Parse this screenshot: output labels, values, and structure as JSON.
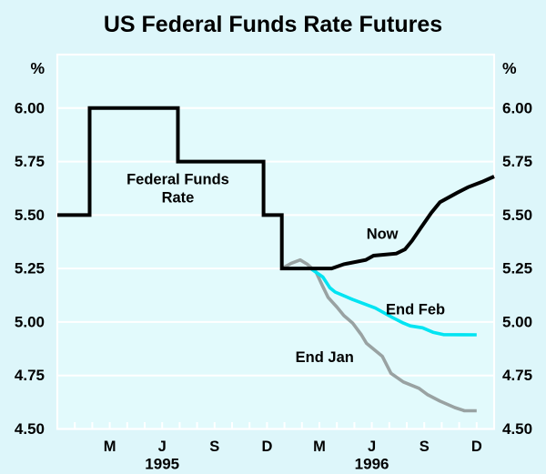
{
  "title": "US Federal Funds Rate Futures",
  "colors": {
    "background": "#DDF6FA",
    "plot_background": "#E2FAFC",
    "grid": "#FFFFFF",
    "line_black": "#000000",
    "line_cyan": "#00E4F2",
    "line_gray": "#99A2A2",
    "text": "#000000"
  },
  "chart_data": {
    "type": "line",
    "title": "US Federal Funds Rate Futures",
    "unit_left": "%",
    "unit_right": "%",
    "ylim": [
      4.5,
      6.25
    ],
    "grid": "on",
    "grid_values": [
      4.75,
      5.0,
      5.25,
      5.5,
      5.75,
      6.0
    ],
    "y_tick_labels": [
      {
        "value": 6.0,
        "label": "6.00"
      },
      {
        "value": 5.75,
        "label": "5.75"
      },
      {
        "value": 5.5,
        "label": "5.50"
      },
      {
        "value": 5.25,
        "label": "5.25"
      },
      {
        "value": 5.0,
        "label": "5.00"
      },
      {
        "value": 4.75,
        "label": "4.75"
      },
      {
        "value": 4.5,
        "label": "4.50"
      }
    ],
    "x_axis": {
      "t_unit": "months_from_Dec_1994",
      "t_range": [
        0,
        25
      ],
      "minor_tick_every_months": 1,
      "month_labels": [
        {
          "label": "M",
          "t": 3
        },
        {
          "label": "J",
          "t": 6
        },
        {
          "label": "S",
          "t": 9
        },
        {
          "label": "D",
          "t": 12
        },
        {
          "label": "M",
          "t": 15
        },
        {
          "label": "J",
          "t": 18
        },
        {
          "label": "S",
          "t": 21
        },
        {
          "label": "D",
          "t": 24
        }
      ],
      "year_labels": [
        {
          "label": "1995",
          "t": 6
        },
        {
          "label": "1996",
          "t": 18
        }
      ]
    },
    "series": [
      {
        "name": "End Jan",
        "color": "#99A2A2",
        "width": 3.6,
        "join": "round",
        "points": [
          [
            12.85,
            5.25
          ],
          [
            13.4,
            5.275
          ],
          [
            13.9,
            5.29
          ],
          [
            14.3,
            5.27
          ],
          [
            14.8,
            5.235
          ],
          [
            15.2,
            5.165
          ],
          [
            15.5,
            5.115
          ],
          [
            16.0,
            5.07
          ],
          [
            16.4,
            5.03
          ],
          [
            16.9,
            4.995
          ],
          [
            17.4,
            4.94
          ],
          [
            17.7,
            4.9
          ],
          [
            18.6,
            4.84
          ],
          [
            19.1,
            4.76
          ],
          [
            19.8,
            4.72
          ],
          [
            20.7,
            4.69
          ],
          [
            21.2,
            4.66
          ],
          [
            21.9,
            4.63
          ],
          [
            22.75,
            4.6
          ],
          [
            23.3,
            4.585
          ],
          [
            24,
            4.585
          ]
        ]
      },
      {
        "name": "End Feb",
        "color": "#00E4F2",
        "width": 3.6,
        "join": "round",
        "points": [
          [
            14.5,
            5.25
          ],
          [
            15.2,
            5.21
          ],
          [
            15.6,
            5.16
          ],
          [
            15.9,
            5.14
          ],
          [
            16.9,
            5.105
          ],
          [
            18.2,
            5.065
          ],
          [
            19.2,
            5.02
          ],
          [
            19.8,
            4.995
          ],
          [
            20.2,
            4.982
          ],
          [
            20.9,
            4.973
          ],
          [
            21.5,
            4.952
          ],
          [
            22.1,
            4.941
          ],
          [
            24,
            4.94
          ]
        ]
      },
      {
        "name": "Federal Funds Rate / Now",
        "color": "#000000",
        "width": 4,
        "join": "miter",
        "points": [
          [
            0,
            5.5
          ],
          [
            1.85,
            5.5
          ],
          [
            1.85,
            6.0
          ],
          [
            6.9,
            6.0
          ],
          [
            6.9,
            5.75
          ],
          [
            11.8,
            5.75
          ],
          [
            11.8,
            5.5
          ],
          [
            12.85,
            5.5
          ],
          [
            12.85,
            5.25
          ],
          [
            15.7,
            5.25
          ],
          [
            16.4,
            5.27
          ],
          [
            17.65,
            5.29
          ],
          [
            18.1,
            5.31
          ],
          [
            19.4,
            5.32
          ],
          [
            19.9,
            5.34
          ],
          [
            20.3,
            5.38
          ],
          [
            20.8,
            5.44
          ],
          [
            21.4,
            5.51
          ],
          [
            21.9,
            5.56
          ],
          [
            22.9,
            5.605
          ],
          [
            23.5,
            5.63
          ],
          [
            24.3,
            5.655
          ],
          [
            25,
            5.68
          ]
        ]
      }
    ],
    "annotations": [
      {
        "id": "federal-funds-rate",
        "lines": [
          "Federal Funds",
          "Rate"
        ],
        "t": 6.9,
        "v": 5.625
      },
      {
        "id": "now",
        "lines": [
          "Now"
        ],
        "t": 18.6,
        "v": 5.412
      },
      {
        "id": "end-feb",
        "lines": [
          "End Feb"
        ],
        "t": 20.5,
        "v": 5.06
      },
      {
        "id": "end-jan",
        "lines": [
          "End Jan"
        ],
        "t": 15.3,
        "v": 4.835
      }
    ]
  }
}
